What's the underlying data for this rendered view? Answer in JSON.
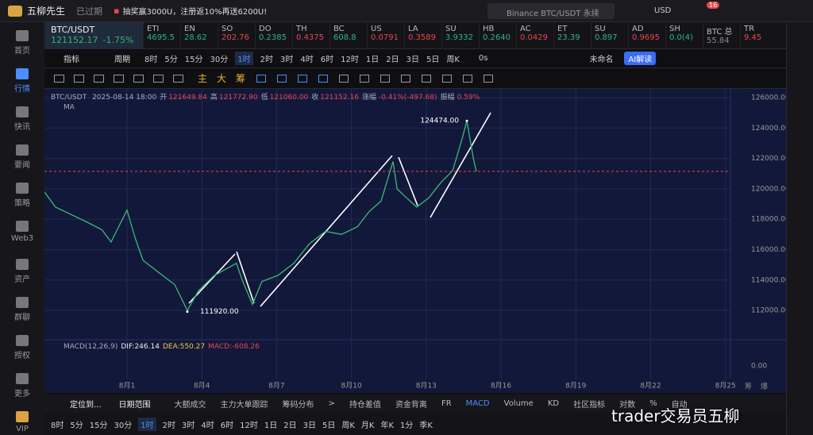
{
  "topbar": {
    "logo": "五柳先生",
    "status": "已过期",
    "promo": "抽奖赢3000U，注册返10%再送6200U!",
    "search": "Binance BTC/USDT 永续",
    "currency": "USD",
    "badge": "16"
  },
  "sidebar": [
    "首页",
    "行情",
    "快讯",
    "要闻",
    "策略",
    "Web3",
    "资产",
    "群聊",
    "授权",
    "更多",
    "VIP"
  ],
  "ticker": {
    "symbol": "BTC/USDT",
    "price": "121152.17",
    "change": "-1.75%",
    "items": [
      {
        "name": "ETI",
        "value": "4695.5",
        "color": "#2fb67c"
      },
      {
        "name": "EN",
        "value": "28.62",
        "color": "#2fb67c"
      },
      {
        "name": "SO",
        "value": "202.76",
        "color": "#e5484d"
      },
      {
        "name": "DO",
        "value": "0.2385",
        "color": "#2fb67c"
      },
      {
        "name": "TH",
        "value": "0.4375",
        "color": "#e5484d"
      },
      {
        "name": "BC",
        "value": "608.8",
        "color": "#2fb67c"
      },
      {
        "name": "US",
        "value": "0.0791",
        "color": "#e5484d"
      },
      {
        "name": "LA",
        "value": "0.3589",
        "color": "#e5484d"
      },
      {
        "name": "SU",
        "value": "3.9332",
        "color": "#2fb67c"
      },
      {
        "name": "HB",
        "value": "0.2640",
        "color": "#2fb67c"
      },
      {
        "name": "AC",
        "value": "0.0429",
        "color": "#e5484d"
      },
      {
        "name": "ET",
        "value": "23.39",
        "color": "#2fb67c"
      },
      {
        "name": "SU",
        "value": "0.897",
        "color": "#2fb67c"
      },
      {
        "name": "AD",
        "value": "0.9695",
        "color": "#e5484d"
      },
      {
        "name": "SH",
        "value": "0.0(4)",
        "color": "#2fb67c"
      },
      {
        "name": "BTC 总",
        "value": "55.84",
        "color": "#888888"
      },
      {
        "name": "TR",
        "value": "9.45",
        "color": "#e5484d"
      }
    ]
  },
  "toolbar": {
    "indicator": "指标",
    "period": "周期",
    "intervals": [
      "8时",
      "5分",
      "15分",
      "30分",
      "1时",
      "2时",
      "3时",
      "4时",
      "6时",
      "12时",
      "1日",
      "2日",
      "3日",
      "5日",
      "周K"
    ],
    "active": "1时",
    "countdown": "0s",
    "layout": "未命名",
    "ai": "AI解读"
  },
  "drawbar": [
    "主",
    "大",
    "筹"
  ],
  "chart": {
    "type": "line",
    "symbol": "BTC/USDT",
    "time": "2025-08-14 18:00",
    "ohlc_labels": [
      "开",
      "高",
      "低",
      "收"
    ],
    "ohlc": [
      "121649.84",
      "121772.90",
      "121060.00"
    ],
    "close": 121152.16,
    "change_label": "涨幅",
    "change": "-0.41%(-497.68)",
    "amp_label": "振幅",
    "amp": "0.59%",
    "ma": "MA",
    "series": [
      {
        "color": "#3cb878",
        "x": [
          -2.31,
          -1.87,
          -1.23,
          -0.59,
          0,
          0.36,
          1,
          1.32,
          1.64,
          2.27,
          2.91,
          3.42,
          3.87,
          4.5,
          5.39,
          5.62,
          6.03,
          6.41,
          7.05,
          7.69,
          8.32,
          8.96,
          9.6,
          10.24,
          10.71,
          11.19,
          11.67,
          11.83,
          12.15,
          12.62,
          13.1,
          13.58,
          14.06,
          14.44,
          14.63,
          14.89,
          15.01
        ],
        "values": [
          119800,
          118800,
          118300,
          117800,
          117300,
          116500,
          118600,
          116800,
          115300,
          114500,
          113700,
          112000,
          113300,
          114300,
          115100,
          114000,
          112400,
          113900,
          114300,
          115100,
          116400,
          117200,
          117000,
          117500,
          118500,
          119200,
          121800,
          120000,
          119500,
          118800,
          119400,
          120400,
          121200,
          123300,
          124474,
          122000,
          121152
        ]
      }
    ],
    "annotations": [
      {
        "x": 14.63,
        "value": 124474,
        "label": "124474.00"
      },
      {
        "x": 3.42,
        "value": 111920,
        "label": "111920.00"
      }
    ],
    "xlim": [
      -2.31,
      25.2
    ],
    "ylim": [
      110070,
      126575
    ],
    "xticks": [
      {
        "value": 1,
        "label": "8月1"
      },
      {
        "value": 4,
        "label": "8月4"
      },
      {
        "value": 7,
        "label": "8月7"
      },
      {
        "value": 10,
        "label": "8月10"
      },
      {
        "value": 13,
        "label": "8月13"
      },
      {
        "value": 16,
        "label": "8月16"
      },
      {
        "value": 19,
        "label": "8月19"
      },
      {
        "value": 22,
        "label": "8月22"
      },
      {
        "value": 25,
        "label": "8月25"
      }
    ],
    "yticks": [
      {
        "value": 112000,
        "label": "112000.00"
      },
      {
        "value": 114000,
        "label": "114000.00"
      },
      {
        "value": 116000,
        "label": "116000.00"
      },
      {
        "value": 118000,
        "label": "118000.00"
      },
      {
        "value": 120000,
        "label": "120000.00"
      },
      {
        "value": 122000,
        "label": "122000.00"
      },
      {
        "value": 124000,
        "label": "124000.00"
      },
      {
        "value": 126000,
        "label": "126000.00"
      }
    ],
    "grid": true,
    "macd": {
      "name": "MACD(12,26,9)",
      "dif": "DIF:246.14",
      "dea": "DEA:550.27",
      "hist": "MACD:-608.26",
      "yticks": [
        {
          "value": 0,
          "label": "0.00"
        }
      ]
    },
    "axis_extra": [
      "筹",
      "爆"
    ]
  },
  "bottombar": {
    "locate": "定位到...",
    "range": "日期范围",
    "tabs": [
      "大额成交",
      "主力大单跟踪",
      "筹码分布",
      ">",
      "持仓差值",
      "资金背离",
      "FR",
      "MACD",
      "Volume",
      "KD",
      "社区指标",
      "对数",
      "%",
      "自动"
    ],
    "intervals": [
      "8时",
      "5分",
      "15分",
      "30分",
      "1时",
      "2时",
      "3时",
      "4时",
      "6时",
      "12时",
      "1日",
      "2日",
      "3日",
      "5日",
      "周K",
      "月K",
      "年K",
      "1分",
      "季K"
    ]
  },
  "watermark": "trader交易员五柳"
}
